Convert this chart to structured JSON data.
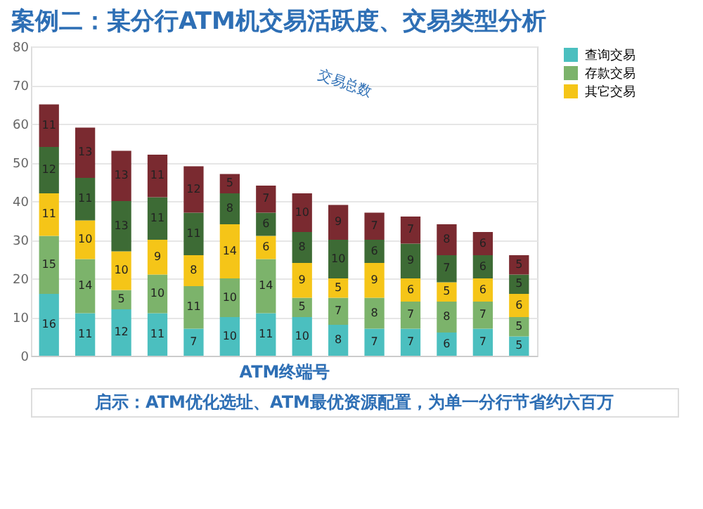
{
  "chart_data": {
    "type": "bar",
    "title": "案例二：某分行ATM机交易活跃度、交易类型分析",
    "xlabel": "ATM终端号",
    "categories": [
      null,
      null,
      null,
      null,
      null,
      null,
      null,
      null,
      null,
      null,
      null,
      null,
      null,
      null
    ],
    "stacked": true,
    "data_labels": true,
    "grid": "y",
    "legend": "right",
    "ylim": [
      0,
      80
    ],
    "yticks": [
      0,
      10,
      20,
      30,
      40,
      50,
      60,
      70,
      80
    ],
    "series": [
      {
        "name": "查询交易",
        "color": "#4bbfbf",
        "values": [
          16,
          11,
          12,
          11,
          7,
          10,
          11,
          10,
          8,
          7,
          7,
          6,
          7,
          5
        ]
      },
      {
        "name": "存款交易",
        "color": "#7cb36b",
        "values": [
          15,
          14,
          5,
          10,
          11,
          10,
          14,
          5,
          7,
          8,
          7,
          8,
          7,
          5
        ]
      },
      {
        "name": "其它交易",
        "color": "#f5c518",
        "values": [
          11,
          10,
          10,
          9,
          8,
          14,
          6,
          9,
          5,
          9,
          6,
          5,
          6,
          6
        ]
      },
      {
        "color": "#3d6b35",
        "values": [
          12,
          11,
          13,
          11,
          11,
          8,
          6,
          8,
          10,
          6,
          9,
          7,
          6,
          5
        ]
      },
      {
        "color": "#7a2a30",
        "values": [
          11,
          13,
          13,
          11,
          12,
          5,
          7,
          10,
          9,
          7,
          7,
          8,
          6,
          5
        ]
      }
    ],
    "annotations": [
      "交易总数",
      "启示：ATM优化选址、ATM最优资源配置，为单一分行节省约六百万"
    ]
  }
}
